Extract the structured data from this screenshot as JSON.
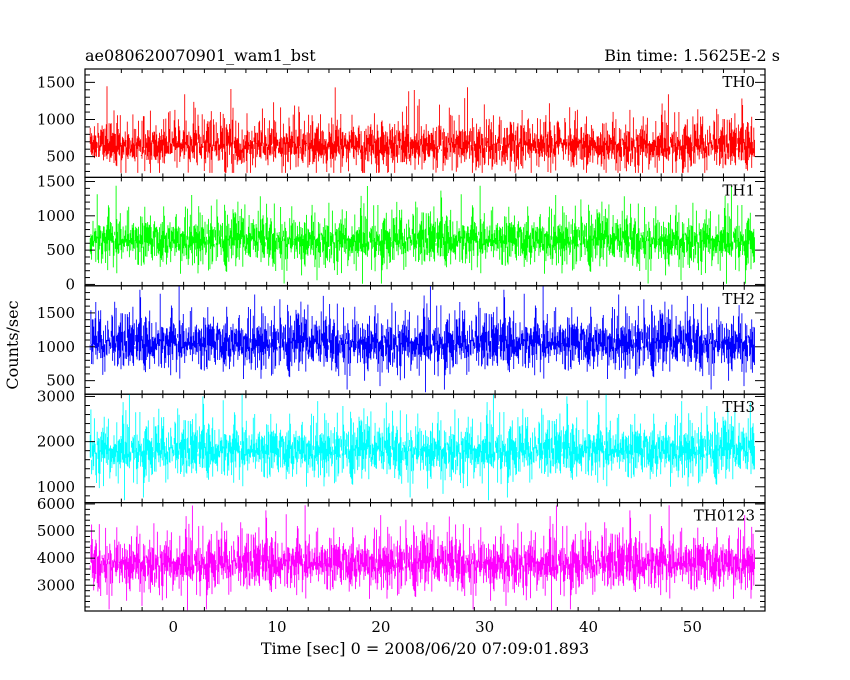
{
  "header": {
    "title": "ae080620070901_wam1_bst",
    "bin_time": "Bin time: 1.5625E-2 s"
  },
  "chart_data": {
    "type": "line",
    "x_label": "Time [sec] 0 = 2008/06/20 07:09:01.893",
    "y_label": "Counts/sec",
    "xlim": [
      -8.5,
      57
    ],
    "x_ticks": [
      0,
      10,
      20,
      30,
      40,
      50
    ],
    "x_data_range": [
      -8.0,
      56.0
    ],
    "panels": [
      {
        "name": "TH0",
        "color": "#ff0000",
        "ylim": [
          220,
          1680
        ],
        "y_ticks": [
          500,
          1000,
          1500
        ],
        "y_tick_labels": [
          "500",
          "1000",
          "1500"
        ],
        "baseline": 650,
        "noise": 200,
        "peak_max": 1650,
        "floor": 280
      },
      {
        "name": "TH1",
        "color": "#00ff00",
        "ylim": [
          -20,
          1560
        ],
        "y_ticks": [
          0,
          500,
          1000,
          1500
        ],
        "y_tick_labels": [
          "0",
          "500",
          "1000",
          "1500"
        ],
        "baseline": 640,
        "noise": 230,
        "peak_max": 1560,
        "floor": 10
      },
      {
        "name": "TH2",
        "color": "#0000ff",
        "ylim": [
          300,
          1900
        ],
        "y_ticks": [
          500,
          1000,
          1500
        ],
        "y_tick_labels": [
          "500",
          "1000",
          "1500"
        ],
        "baseline": 1050,
        "noise": 250,
        "peak_max": 1900,
        "floor": 330
      },
      {
        "name": "TH3",
        "color": "#00ffff",
        "ylim": [
          650,
          3050
        ],
        "y_ticks": [
          1000,
          2000,
          3000
        ],
        "y_tick_labels": [
          "1000",
          "2000",
          "3000"
        ],
        "baseline": 1800,
        "noise": 380,
        "peak_max": 3050,
        "floor": 700
      },
      {
        "name": "TH0123",
        "color": "#ff00ff",
        "ylim": [
          2050,
          6050
        ],
        "y_ticks": [
          3000,
          4000,
          5000,
          6000
        ],
        "y_tick_labels": [
          "3000",
          "4000",
          "5000",
          "6000"
        ],
        "baseline": 3800,
        "noise": 620,
        "peak_max": 6000,
        "floor": 2080
      }
    ]
  }
}
